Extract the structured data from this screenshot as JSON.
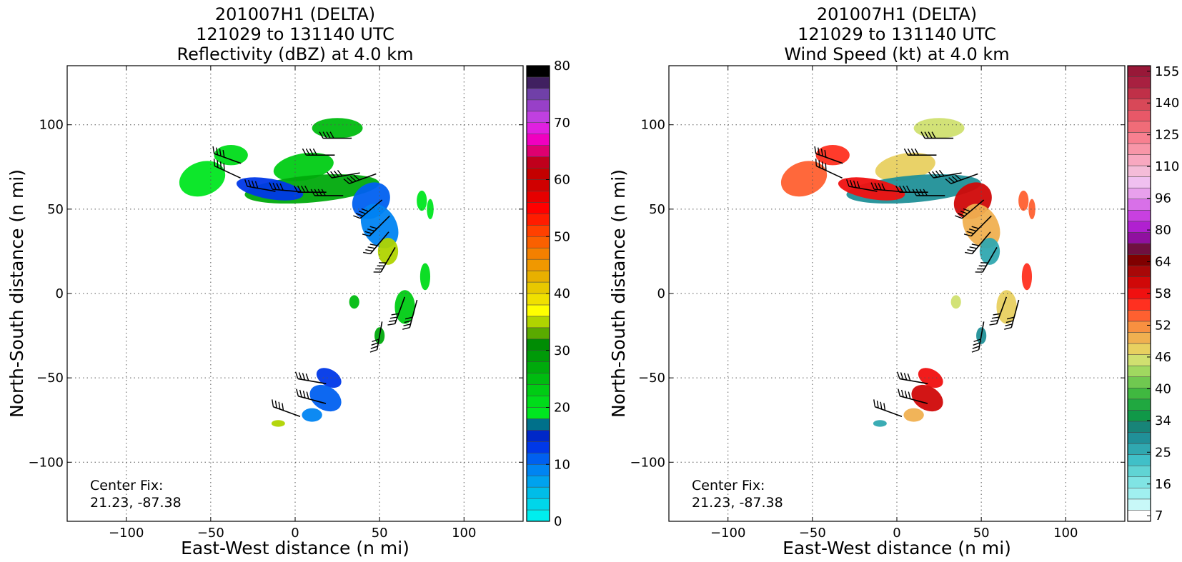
{
  "chart_data": [
    {
      "type": "heatmap",
      "title_lines": [
        "201007H1 (DELTA)",
        "121029 to 131140 UTC",
        "Reflectivity (dBZ) at 4.0 km"
      ],
      "xlabel": "East-West distance (n mi)",
      "ylabel": "North-South distance (n mi)",
      "xlim": [
        -135,
        135
      ],
      "ylim": [
        -135,
        135
      ],
      "xticks": [
        -100,
        -50,
        0,
        50,
        100
      ],
      "yticks": [
        -100,
        -50,
        0,
        50,
        100
      ],
      "x_tick_labels": [
        "−100",
        "−50",
        "0",
        "50",
        "100"
      ],
      "y_tick_labels": [
        "−100",
        "−50",
        "0",
        "50",
        "100"
      ],
      "grid": true,
      "annotation": [
        "Center Fix:",
        "21.23, -87.38"
      ],
      "colorbar": {
        "ticks": [
          "0",
          "10",
          "20",
          "30",
          "40",
          "50",
          "60",
          "70",
          "80"
        ],
        "colors": [
          "#00eeee",
          "#00d6ea",
          "#00bde8",
          "#00a2ee",
          "#0084f2",
          "#0060f0",
          "#0038e8",
          "#0028c8",
          "#00708a",
          "#00e620",
          "#00dc1a",
          "#00cc14",
          "#00bc10",
          "#00aa0c",
          "#009a08",
          "#008c04",
          "#5aaa00",
          "#b0d400",
          "#ffff00",
          "#f0e000",
          "#e8c800",
          "#e8b000",
          "#f09800",
          "#f48000",
          "#fa6000",
          "#ff4000",
          "#ff1c00",
          "#ff0000",
          "#e60000",
          "#d00000",
          "#c40000",
          "#c0001c",
          "#de0070",
          "#f000c0",
          "#e020e0",
          "#c040e0",
          "#9840c8",
          "#7040a8",
          "#402060",
          "#000000"
        ]
      },
      "storm_color": "green/blue reflectivity echoes"
    },
    {
      "type": "heatmap",
      "title_lines": [
        "201007H1 (DELTA)",
        "121029 to 131140 UTC",
        "Wind Speed (kt) at 4.0 km"
      ],
      "xlabel": "East-West distance (n mi)",
      "ylabel": "North-South distance (n mi)",
      "xlim": [
        -135,
        135
      ],
      "ylim": [
        -135,
        135
      ],
      "xticks": [
        -100,
        -50,
        0,
        50,
        100
      ],
      "yticks": [
        -100,
        -50,
        0,
        50,
        100
      ],
      "x_tick_labels": [
        "−100",
        "−50",
        "0",
        "50",
        "100"
      ],
      "y_tick_labels": [
        "−100",
        "−50",
        "0",
        "50",
        "100"
      ],
      "grid": true,
      "annotation": [
        "Center Fix:",
        "21.23, -87.38"
      ],
      "colorbar": {
        "ticks": [
          "7",
          "16",
          "25",
          "34",
          "40",
          "46",
          "52",
          "58",
          "64",
          "80",
          "96",
          "110",
          "125",
          "140",
          "155"
        ],
        "colors": [
          "#ffffff",
          "#c8f8f8",
          "#a0f0f0",
          "#80e4e4",
          "#60d4d4",
          "#40c0c8",
          "#30a8b0",
          "#209098",
          "#188478",
          "#109848",
          "#20a840",
          "#40b840",
          "#70c850",
          "#a0d860",
          "#d0e070",
          "#e8d060",
          "#f0b050",
          "#f89040",
          "#ff6030",
          "#ff3020",
          "#f01010",
          "#d00808",
          "#a80808",
          "#800000",
          "#701040",
          "#9010a0",
          "#b020d0",
          "#c840e0",
          "#d870e8",
          "#e8a0ec",
          "#f0c0f0",
          "#f4bcd8",
          "#f8a8c0",
          "#f896a8",
          "#f88090",
          "#f06c78",
          "#e85868",
          "#d84858",
          "#c03048",
          "#a82040",
          "#981838"
        ]
      },
      "storm_color": "red/yellow/teal wind speeds"
    }
  ]
}
